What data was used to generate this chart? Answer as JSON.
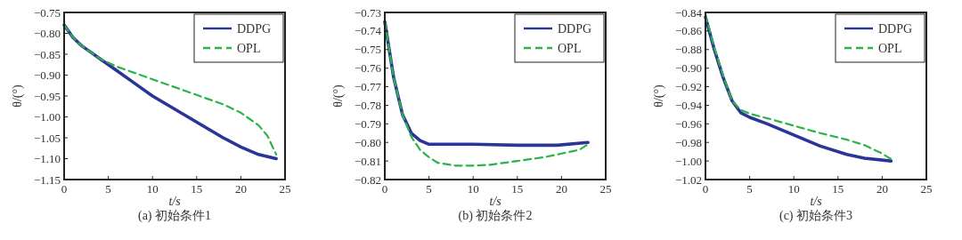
{
  "chart_data": [
    {
      "type": "line",
      "title": "(a) 初始条件1",
      "xlabel": "t/s",
      "ylabel": "θ/(°)",
      "legend": "top right",
      "grid": false,
      "xlim": [
        0,
        25
      ],
      "xticks": [
        0,
        5,
        10,
        15,
        20,
        25
      ],
      "ylim": [
        -1.15,
        -0.75
      ],
      "yticks": [
        {
          "value": -1.15,
          "label": "−1.15"
        },
        {
          "value": -1.1,
          "label": "−1.10"
        },
        {
          "value": -1.05,
          "label": "−1.05"
        },
        {
          "value": -1.0,
          "label": "−1.00"
        },
        {
          "value": -0.95,
          "label": "−0.95"
        },
        {
          "value": -0.9,
          "label": "−0.90"
        },
        {
          "value": -0.85,
          "label": "−0.85"
        },
        {
          "value": -0.8,
          "label": "−0.80"
        },
        {
          "value": -0.75,
          "label": "−0.75"
        }
      ],
      "series": [
        {
          "name": "DDPG",
          "color": "#2b3598",
          "line_style": "solid",
          "x": [
            0,
            1,
            2,
            3,
            4,
            5,
            6,
            8,
            10,
            12,
            14,
            16,
            18,
            20,
            22,
            24
          ],
          "values": [
            -0.78,
            -0.81,
            -0.83,
            -0.845,
            -0.86,
            -0.875,
            -0.89,
            -0.92,
            -0.95,
            -0.975,
            -1.0,
            -1.025,
            -1.05,
            -1.072,
            -1.09,
            -1.1
          ]
        },
        {
          "name": "OPL",
          "color": "#2bb34a",
          "line_style": "dashed",
          "x": [
            0,
            1,
            2,
            3,
            4,
            5,
            6,
            8,
            10,
            12,
            14,
            16,
            18,
            20,
            22,
            23,
            24
          ],
          "values": [
            -0.78,
            -0.81,
            -0.83,
            -0.845,
            -0.86,
            -0.87,
            -0.88,
            -0.895,
            -0.91,
            -0.925,
            -0.94,
            -0.955,
            -0.97,
            -0.99,
            -1.02,
            -1.045,
            -1.09
          ]
        }
      ]
    },
    {
      "type": "line",
      "title": "(b) 初始条件2",
      "xlabel": "t/s",
      "ylabel": "θ/(°)",
      "legend": "top right",
      "grid": false,
      "xlim": [
        0,
        25
      ],
      "xticks": [
        0,
        5,
        10,
        15,
        20,
        25
      ],
      "ylim": [
        -0.82,
        -0.73
      ],
      "yticks": [
        {
          "value": -0.82,
          "label": "−0.82"
        },
        {
          "value": -0.81,
          "label": "−0.81"
        },
        {
          "value": -0.8,
          "label": "−0.80"
        },
        {
          "value": -0.79,
          "label": "−0.79"
        },
        {
          "value": -0.78,
          "label": "−0.78"
        },
        {
          "value": -0.77,
          "label": "−0.77"
        },
        {
          "value": -0.76,
          "label": "−0.76"
        },
        {
          "value": -0.75,
          "label": "−0.75"
        },
        {
          "value": -0.74,
          "label": "−0.74"
        },
        {
          "value": -0.73,
          "label": "−0.73"
        }
      ],
      "series": [
        {
          "name": "DDPG",
          "color": "#2b3598",
          "line_style": "solid",
          "x": [
            0,
            1,
            2,
            3,
            4,
            5,
            10,
            15,
            19.5,
            23
          ],
          "values": [
            -0.735,
            -0.765,
            -0.785,
            -0.795,
            -0.799,
            -0.801,
            -0.801,
            -0.8015,
            -0.8015,
            -0.8
          ]
        },
        {
          "name": "OPL",
          "color": "#2bb34a",
          "line_style": "dashed",
          "x": [
            0,
            1,
            2,
            3,
            4,
            5,
            6,
            8,
            10,
            12,
            15,
            18,
            20,
            22,
            23
          ],
          "values": [
            -0.735,
            -0.765,
            -0.785,
            -0.797,
            -0.804,
            -0.808,
            -0.811,
            -0.8125,
            -0.8125,
            -0.812,
            -0.81,
            -0.808,
            -0.806,
            -0.804,
            -0.801
          ]
        }
      ]
    },
    {
      "type": "line",
      "title": "(c) 初始条件3",
      "xlabel": "t/s",
      "ylabel": "θ/(°)",
      "legend": "top right",
      "grid": false,
      "xlim": [
        0,
        25
      ],
      "xticks": [
        0,
        5,
        10,
        15,
        20,
        25
      ],
      "ylim": [
        -1.02,
        -0.84
      ],
      "yticks": [
        {
          "value": -1.02,
          "label": "−1.02"
        },
        {
          "value": -1.0,
          "label": "−1.00"
        },
        {
          "value": -0.98,
          "label": "−0.98"
        },
        {
          "value": -0.96,
          "label": "−0.96"
        },
        {
          "value": -0.94,
          "label": "−0.94"
        },
        {
          "value": -0.92,
          "label": "−0.92"
        },
        {
          "value": -0.9,
          "label": "−0.90"
        },
        {
          "value": -0.88,
          "label": "−0.88"
        },
        {
          "value": -0.86,
          "label": "−0.86"
        },
        {
          "value": -0.84,
          "label": "−0.84"
        }
      ],
      "series": [
        {
          "name": "DDPG",
          "color": "#2b3598",
          "line_style": "solid",
          "x": [
            0,
            1,
            2,
            3,
            4,
            5,
            7,
            10,
            13,
            16,
            18,
            21
          ],
          "values": [
            -0.845,
            -0.88,
            -0.91,
            -0.935,
            -0.948,
            -0.953,
            -0.96,
            -0.972,
            -0.984,
            -0.993,
            -0.997,
            -1.0
          ]
        },
        {
          "name": "OPL",
          "color": "#2bb34a",
          "line_style": "dashed",
          "x": [
            0,
            1,
            2,
            3,
            4,
            5,
            7,
            10,
            13,
            16,
            18,
            20,
            21
          ],
          "values": [
            -0.842,
            -0.878,
            -0.908,
            -0.935,
            -0.945,
            -0.949,
            -0.954,
            -0.962,
            -0.97,
            -0.977,
            -0.983,
            -0.992,
            -0.998
          ]
        }
      ]
    }
  ]
}
